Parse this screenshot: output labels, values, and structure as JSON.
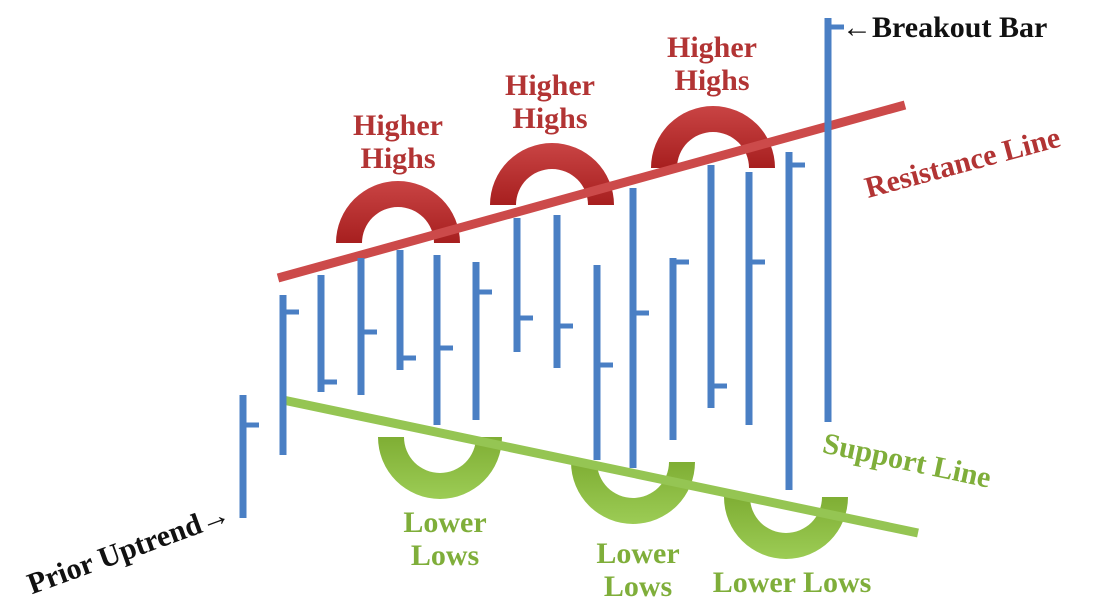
{
  "higher_highs": [
    [
      "Higher",
      "Highs"
    ],
    [
      "Higher",
      "Highs"
    ],
    [
      "Higher",
      "Highs"
    ]
  ],
  "lower_lows": [
    [
      "Lower",
      "Lows"
    ],
    [
      "Lower",
      "Lows"
    ],
    [
      "Lower Lows"
    ]
  ],
  "resistance_line": "Resistance Line",
  "support_line": "Support Line",
  "breakout_bar": "←Breakout Bar",
  "prior_uptrend": "Prior Uptrend→"
}
